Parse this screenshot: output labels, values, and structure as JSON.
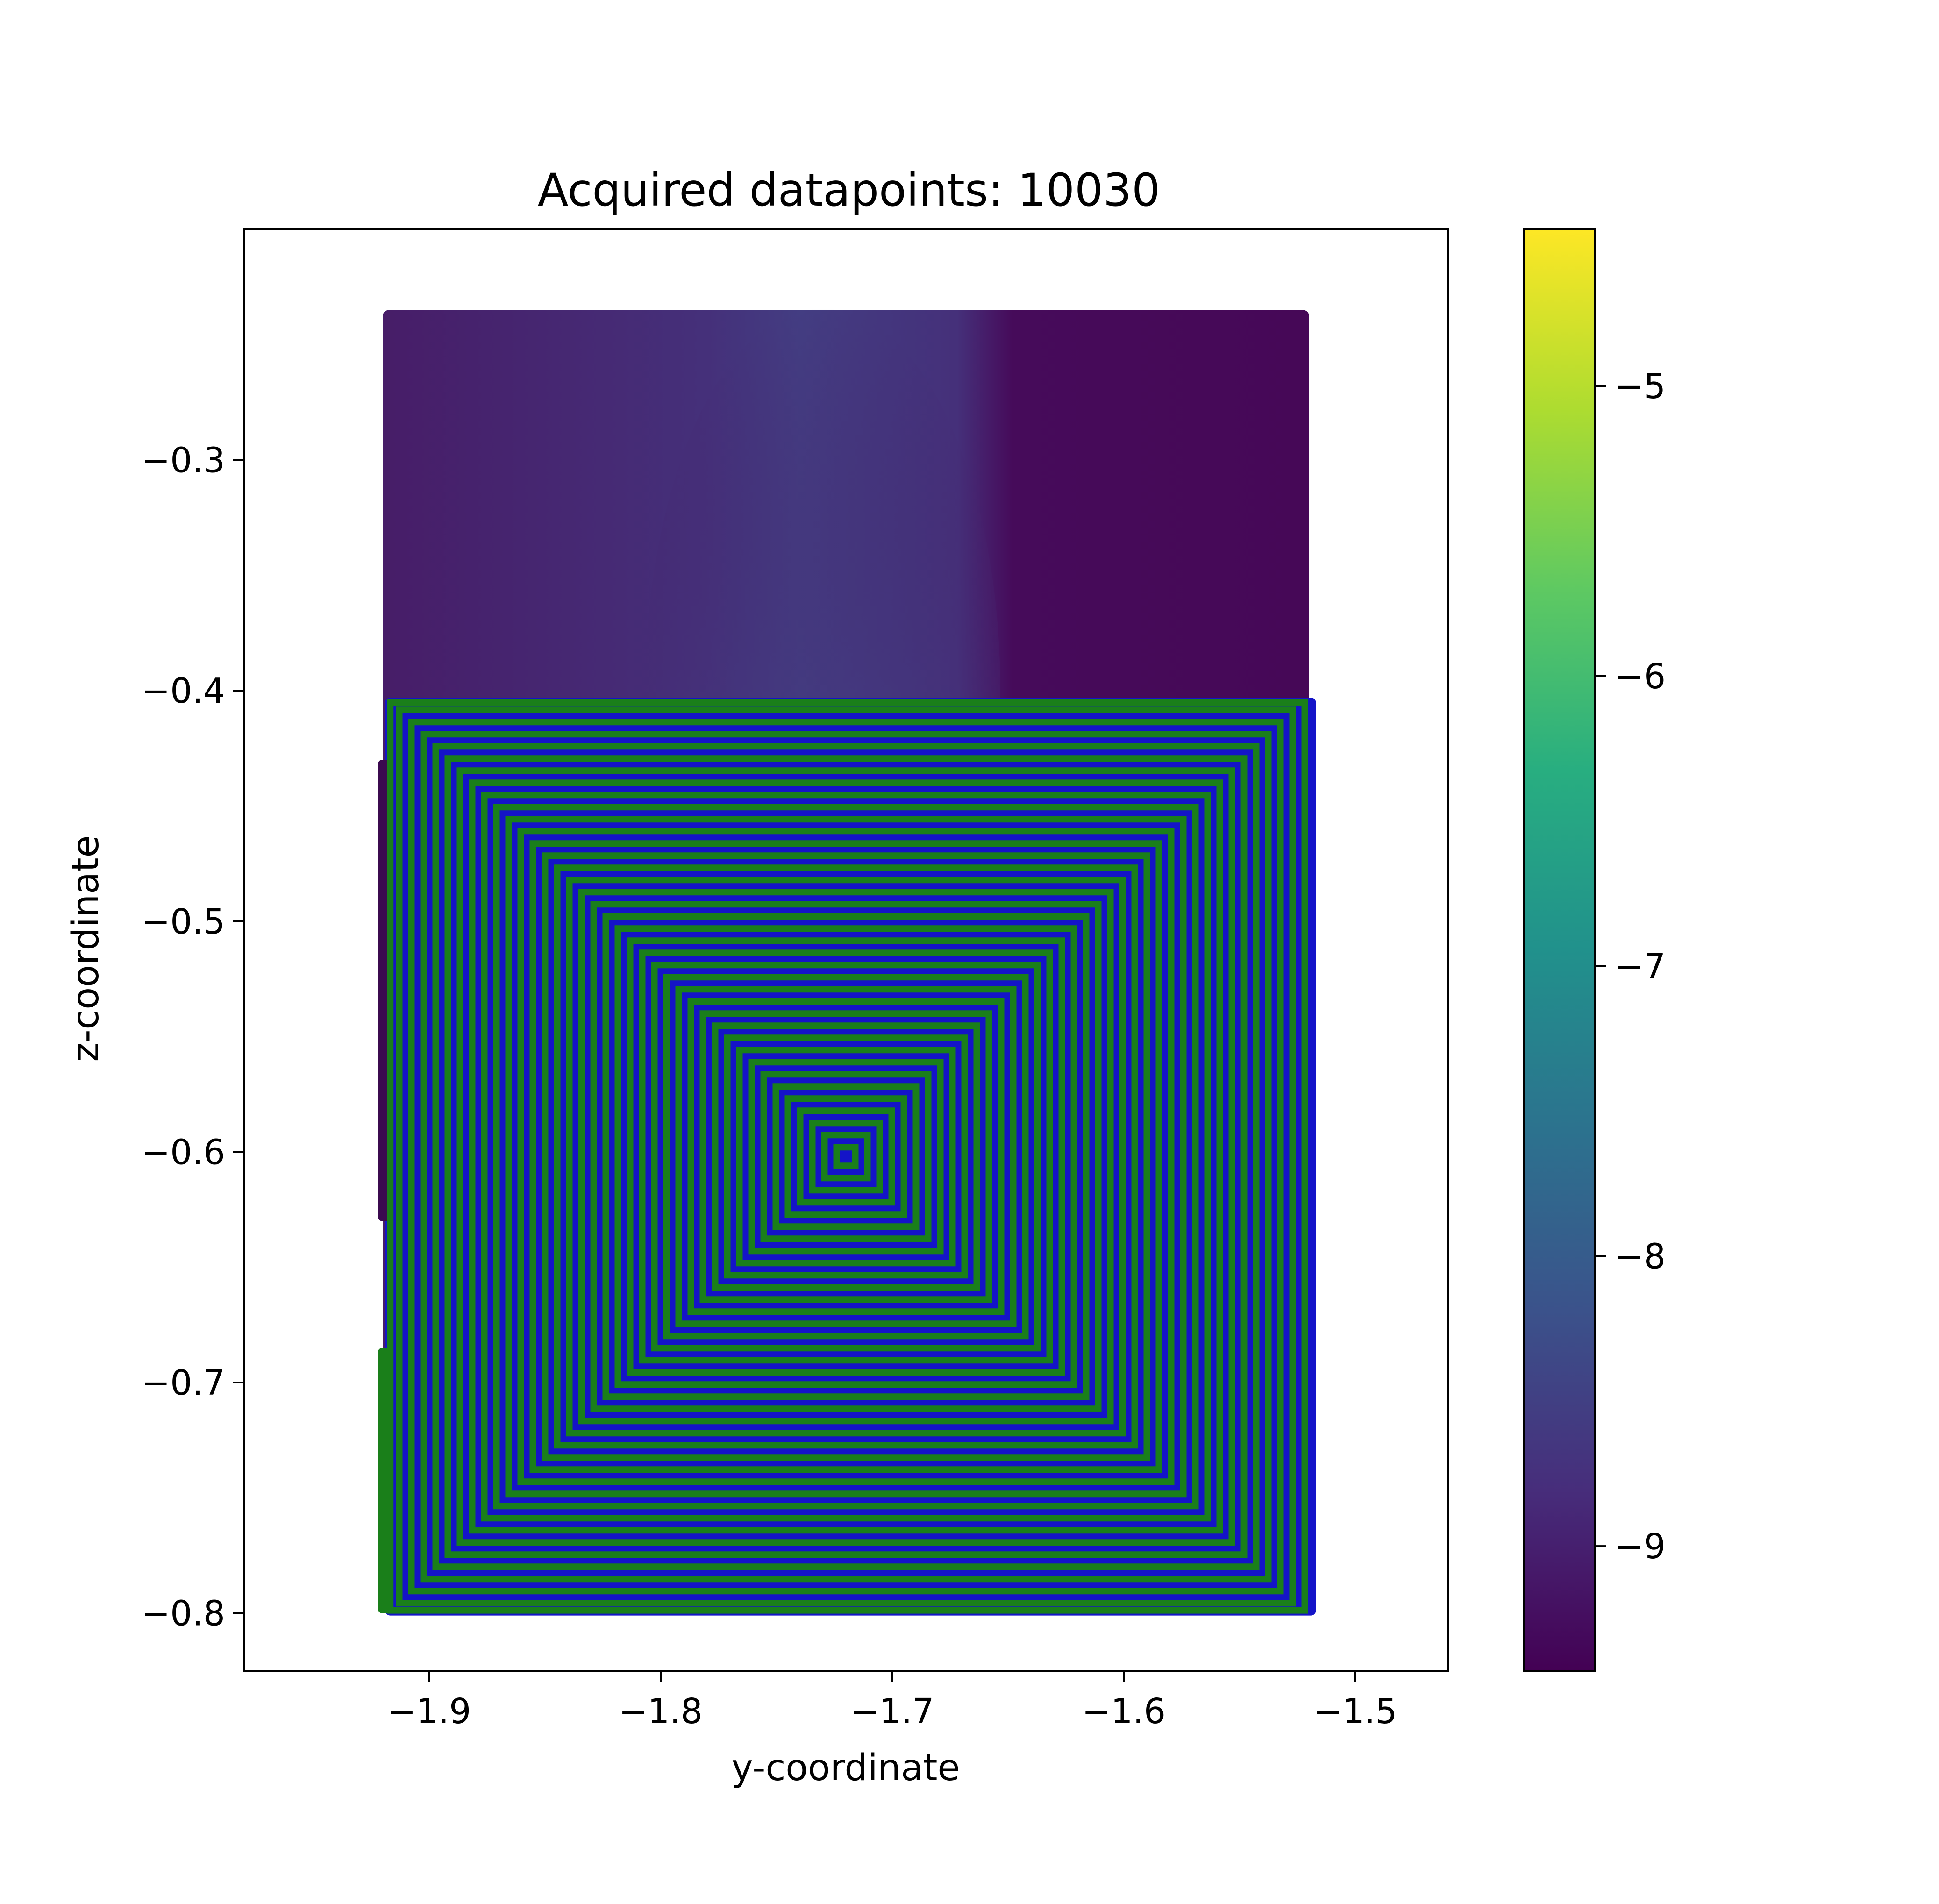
{
  "chart_data": {
    "type": "scatter",
    "title": "Acquired datapoints: 10030",
    "xlabel": "y-coordinate",
    "ylabel": "z-coordinate",
    "xlim": [
      -1.98,
      -1.46
    ],
    "ylim": [
      -0.825,
      -0.2
    ],
    "xticks": [
      -1.9,
      -1.8,
      -1.7,
      -1.6,
      -1.5
    ],
    "xtick_labels": [
      "−1.9",
      "−1.8",
      "−1.7",
      "−1.6",
      "−1.5"
    ],
    "yticks": [
      -0.3,
      -0.4,
      -0.5,
      -0.6,
      -0.7,
      -0.8
    ],
    "ytick_labels": [
      "−0.3",
      "−0.4",
      "−0.5",
      "−0.6",
      "−0.7",
      "−0.8"
    ],
    "grid": false,
    "colormap": "viridis",
    "colorbar": {
      "range": [
        -9.43,
        -4.46
      ],
      "ticks": [
        -5,
        -6,
        -7,
        -8,
        -9
      ],
      "tick_labels": [
        "−5",
        "−6",
        "−7",
        "−8",
        "−9"
      ]
    },
    "series": [
      {
        "kind": "measured-field",
        "y_range": [
          -1.92,
          -1.52
        ],
        "z_range": [
          -0.8,
          -0.235
        ],
        "color_by_value": true,
        "peak": {
          "y": -1.73,
          "z": -0.4,
          "value": -8.1
        },
        "background_value": -9.2
      },
      {
        "kind": "square-spiral-path",
        "center": {
          "y": -1.72,
          "z": -0.602
        },
        "y_range": [
          -1.918,
          -1.518
        ],
        "z_range": [
          -0.8,
          -0.404
        ],
        "path_color": "#1a7f1a",
        "marker_color": "#1414c8",
        "value": -9.3
      }
    ]
  }
}
